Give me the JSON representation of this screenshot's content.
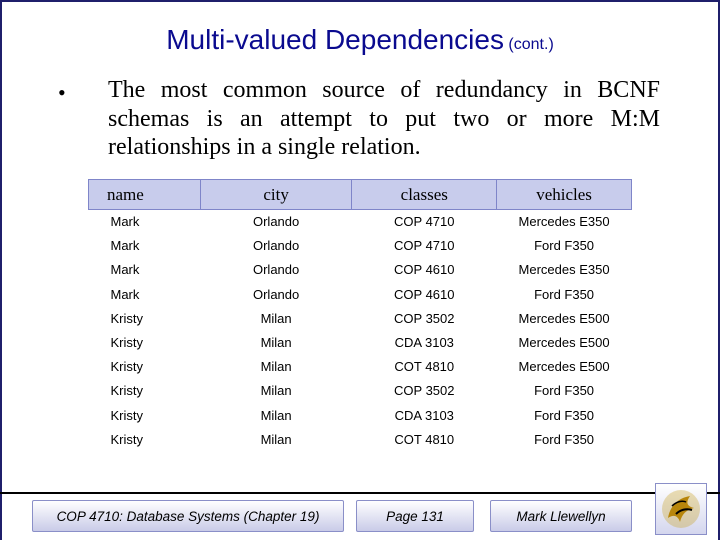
{
  "title": {
    "main": "Multi-valued Dependencies",
    "sub": "(cont.)"
  },
  "bullet_symbol": "•",
  "body_text": "The most common source of redundancy in BCNF schemas is an attempt to put two or more M:M relationships in a single relation.",
  "table": {
    "headers": [
      "name",
      "city",
      "classes",
      "vehicles"
    ],
    "rows": [
      [
        "Mark",
        "Orlando",
        "COP 4710",
        "Mercedes E350"
      ],
      [
        "Mark",
        "Orlando",
        "COP 4710",
        "Ford F350"
      ],
      [
        "Mark",
        "Orlando",
        "COP 4610",
        "Mercedes E350"
      ],
      [
        "Mark",
        "Orlando",
        "COP 4610",
        "Ford F350"
      ],
      [
        "Kristy",
        "Milan",
        "COP 3502",
        "Mercedes E500"
      ],
      [
        "Kristy",
        "Milan",
        "CDA 3103",
        "Mercedes E500"
      ],
      [
        "Kristy",
        "Milan",
        "COT 4810",
        "Mercedes E500"
      ],
      [
        "Kristy",
        "Milan",
        "COP 3502",
        "Ford F350"
      ],
      [
        "Kristy",
        "Milan",
        "CDA 3103",
        "Ford F350"
      ],
      [
        "Kristy",
        "Milan",
        "COT 4810",
        "Ford F350"
      ]
    ]
  },
  "footer": {
    "course": "COP 4710: Database Systems (Chapter 19)",
    "page": "Page 131",
    "author": "Mark Llewellyn"
  },
  "logo_icon": "ucf-pegasus-logo-icon"
}
